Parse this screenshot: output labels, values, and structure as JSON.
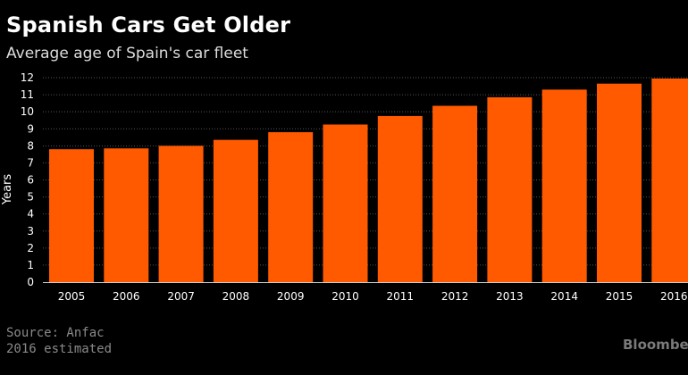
{
  "chart_data": {
    "type": "bar",
    "title": "Spanish Cars Get Older",
    "subtitle": "Average age of Spain's car fleet",
    "ylabel": "Years",
    "xlabel": "",
    "categories": [
      "2005",
      "2006",
      "2007",
      "2008",
      "2009",
      "2010",
      "2011",
      "2012",
      "2013",
      "2014",
      "2015",
      "2016"
    ],
    "values": [
      7.8,
      7.85,
      8.0,
      8.35,
      8.8,
      9.25,
      9.75,
      10.35,
      10.85,
      11.3,
      11.65,
      11.95
    ],
    "ylim": [
      0,
      12
    ],
    "yticks": [
      "0",
      "1",
      "2",
      "3",
      "4",
      "5",
      "6",
      "7",
      "8",
      "9",
      "10",
      "11",
      "12"
    ],
    "grid": true,
    "bar_color": "#ff5a00"
  },
  "footer": {
    "source": "Source: Anfac",
    "note": "2016 estimated",
    "brand": "Bloomberg"
  },
  "colors": {
    "background": "#000000",
    "bar": "#ff5a00",
    "text": "#ffffff",
    "muted": "#8a8a8a",
    "grid": "#555555"
  }
}
